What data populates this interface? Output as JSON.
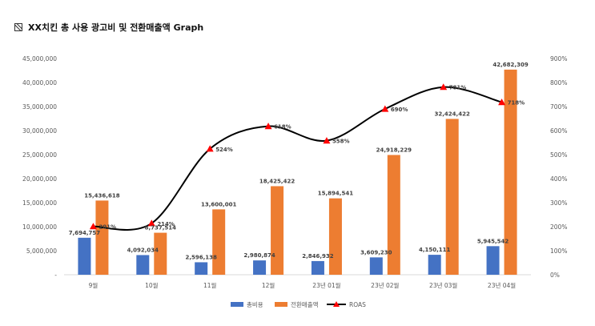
{
  "title": {
    "icon": "striped-square-icon",
    "text": "XX치킨 총 사용 광고비 및 전환매출액 Graph"
  },
  "chart_data": {
    "type": "bar",
    "categories": [
      "9월",
      "10월",
      "11월",
      "12월",
      "23년 01월",
      "23년 02월",
      "23년 03월",
      "23년 04월"
    ],
    "series": [
      {
        "name": "총비용",
        "type": "bar",
        "axis": "left",
        "color": "#4472C4",
        "values": [
          7694757,
          4092034,
          2596138,
          2980874,
          2846932,
          3609230,
          4150111,
          5945542
        ],
        "labels": [
          "7,694,757",
          "4,092,034",
          "2,596,138",
          "2,980,874",
          "2,846,932",
          "3,609,230",
          "4,150,111",
          "5,945,542"
        ]
      },
      {
        "name": "전환매출액",
        "type": "bar",
        "axis": "left",
        "color": "#ED7D31",
        "values": [
          15436618,
          8737514,
          13600001,
          18425422,
          15894541,
          24918229,
          32424422,
          42682309
        ],
        "labels": [
          "15,436,618",
          "8,737,514",
          "13,600,001",
          "18,425,422",
          "15,894,541",
          "24,918,229",
          "32,424,422",
          "42,682,309"
        ]
      },
      {
        "name": "ROAS",
        "type": "line",
        "axis": "right",
        "color": "#000000",
        "marker_color": "#FF0000",
        "values": [
          201,
          214,
          524,
          618,
          558,
          690,
          781,
          718
        ],
        "labels": [
          "201%",
          "214%",
          "524%",
          "618%",
          "558%",
          "690%",
          "781%",
          "718%"
        ]
      }
    ],
    "left_axis": {
      "min": 0,
      "max": 45000000,
      "ticks": [
        "-",
        "5,000,000",
        "10,000,000",
        "15,000,000",
        "20,000,000",
        "25,000,000",
        "30,000,000",
        "35,000,000",
        "40,000,000",
        "45,000,000"
      ]
    },
    "right_axis": {
      "min": 0,
      "max": 900,
      "ticks": [
        "0%",
        "100%",
        "200%",
        "300%",
        "400%",
        "500%",
        "600%",
        "700%",
        "800%",
        "900%"
      ]
    },
    "grid": false,
    "legend_position": "bottom"
  }
}
